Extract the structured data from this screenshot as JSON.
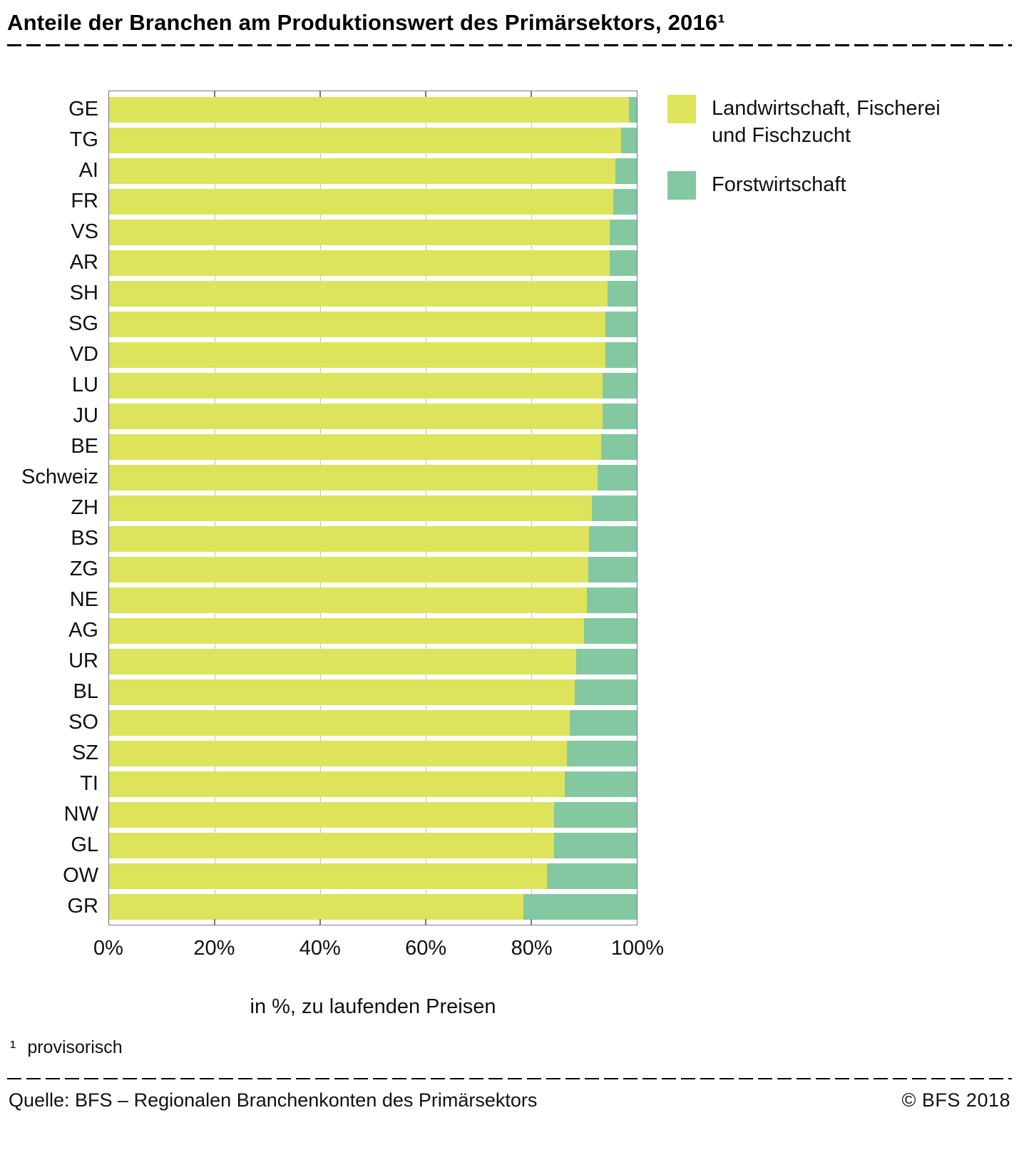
{
  "header": {
    "title": "Anteile der Branchen am Produktionswert des Primärsektors, 2016¹"
  },
  "chart_data": {
    "type": "bar",
    "orientation": "horizontal",
    "stacked": true,
    "unit": "%",
    "categories": [
      "GE",
      "TG",
      "AI",
      "FR",
      "VS",
      "AR",
      "SH",
      "SG",
      "VD",
      "LU",
      "JU",
      "BE",
      "Schweiz",
      "ZH",
      "BS",
      "ZG",
      "NE",
      "AG",
      "UR",
      "BL",
      "SO",
      "SZ",
      "TI",
      "NW",
      "GL",
      "OW",
      "GR"
    ],
    "series": [
      {
        "name": "Landwirtschaft, Fischerei und Fischzucht",
        "color": "#dde45c",
        "values": [
          98.5,
          97.0,
          96.0,
          95.5,
          94.8,
          94.8,
          94.5,
          94.0,
          94.0,
          93.5,
          93.5,
          93.3,
          92.5,
          91.5,
          91.0,
          90.8,
          90.5,
          90.0,
          88.5,
          88.3,
          87.3,
          86.8,
          86.3,
          84.3,
          84.3,
          83.0,
          78.5
        ]
      },
      {
        "name": "Forstwirtschaft",
        "color": "#84c8a2",
        "values": [
          1.5,
          3.0,
          4.0,
          4.5,
          5.2,
          5.2,
          5.5,
          6.0,
          6.0,
          6.5,
          6.5,
          6.7,
          7.5,
          8.5,
          9.0,
          9.2,
          9.5,
          10.0,
          11.5,
          11.7,
          12.7,
          13.2,
          13.7,
          15.7,
          15.7,
          17.0,
          21.5
        ]
      }
    ],
    "xlabel": "in %, zu laufenden Preisen",
    "xlim": [
      0,
      100
    ],
    "x_ticks": [
      "0%",
      "20%",
      "40%",
      "60%",
      "80%",
      "100%"
    ],
    "gridline_positions": [
      20,
      40,
      60,
      80
    ],
    "grid": "vertical",
    "legend_position": "top-right"
  },
  "footnote": {
    "marker": "¹",
    "text": "provisorisch"
  },
  "footer": {
    "source": "Quelle: BFS – Regionalen Branchenkonten des Primärsektors",
    "copyright": "© BFS  2018"
  }
}
